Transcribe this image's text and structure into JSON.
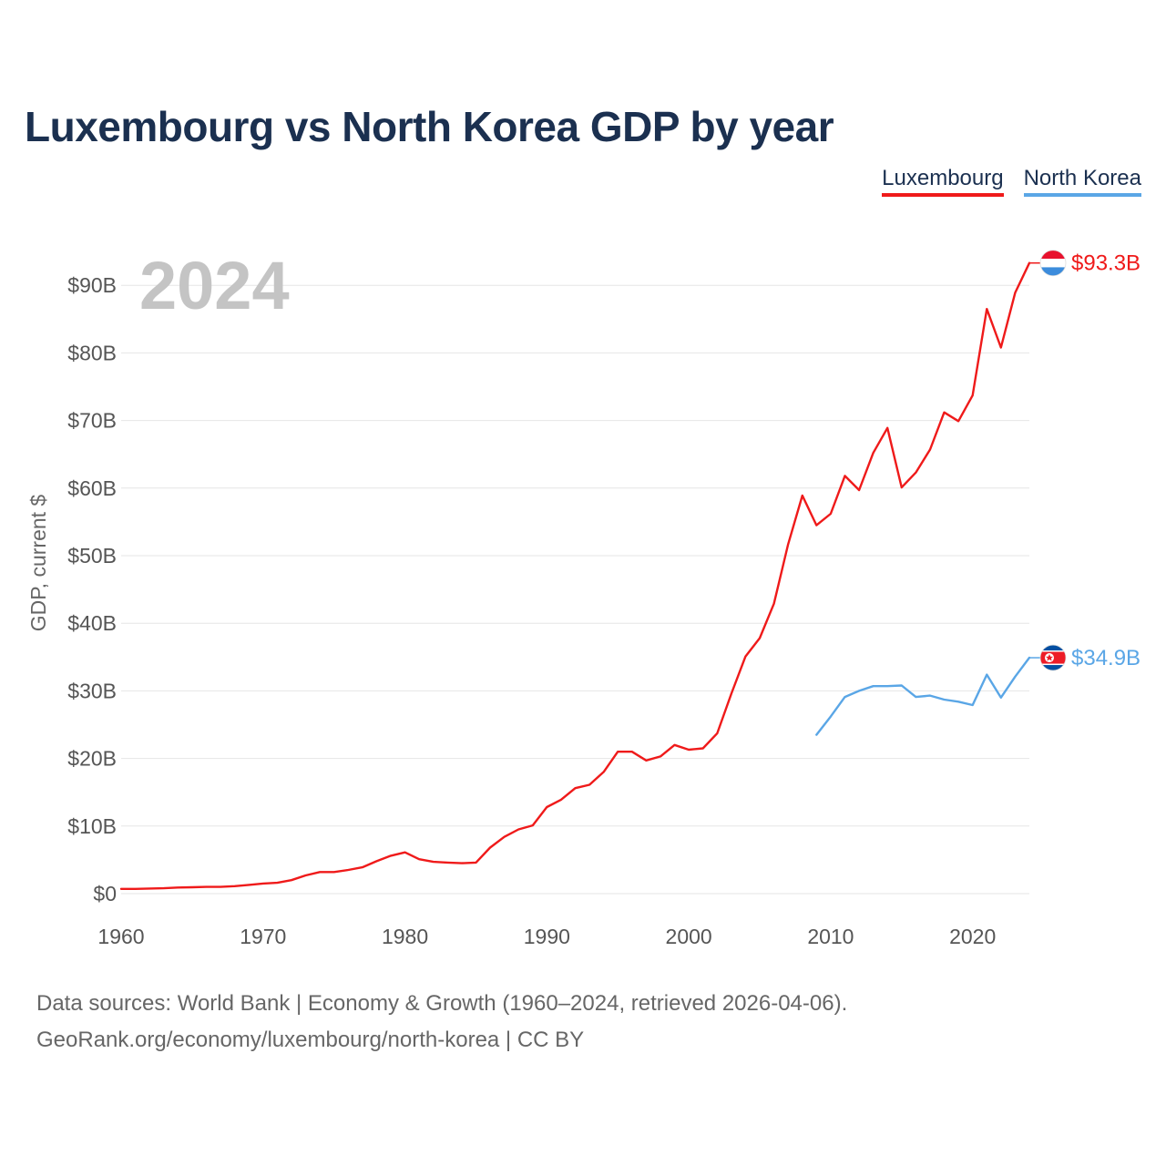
{
  "title": "Luxembourg vs North Korea GDP by year",
  "legend": {
    "luxembourg": "Luxembourg",
    "north_korea": "North Korea"
  },
  "colors": {
    "luxembourg": "#ef1a1a",
    "north_korea": "#5aa6e6",
    "title": "#1b3050",
    "grid": "#e6e6e6"
  },
  "source": {
    "line1": "Data sources: World Bank | Economy & Growth (1960–2024, retrieved 2026-04-06).",
    "line2": "GeoRank.org/economy/luxembourg/north-korea | CC BY"
  },
  "chart_data": {
    "type": "line",
    "title": "Luxembourg vs North Korea GDP by year",
    "xlabel": "",
    "ylabel": "GDP, current $",
    "year_watermark": "2024",
    "xlim": [
      1960,
      2024
    ],
    "ylim": [
      0,
      95
    ],
    "x_ticks": [
      1960,
      1970,
      1980,
      1990,
      2000,
      2010,
      2020
    ],
    "y_ticks": [
      0,
      10,
      20,
      30,
      40,
      50,
      60,
      70,
      80,
      90
    ],
    "y_tick_labels": [
      "$0",
      "$10B",
      "$20B",
      "$30B",
      "$40B",
      "$50B",
      "$60B",
      "$70B",
      "$80B",
      "$90B"
    ],
    "grid": true,
    "series": [
      {
        "name": "Luxembourg",
        "color": "#ef1a1a",
        "flag": "luxembourg-flag-icon",
        "end_label": "$93.3B",
        "points": [
          [
            1960,
            0.7
          ],
          [
            1961,
            0.7
          ],
          [
            1962,
            0.75
          ],
          [
            1963,
            0.8
          ],
          [
            1964,
            0.9
          ],
          [
            1965,
            0.95
          ],
          [
            1966,
            1.0
          ],
          [
            1967,
            1.0
          ],
          [
            1968,
            1.1
          ],
          [
            1969,
            1.3
          ],
          [
            1970,
            1.5
          ],
          [
            1971,
            1.6
          ],
          [
            1972,
            2.0
          ],
          [
            1973,
            2.7
          ],
          [
            1974,
            3.2
          ],
          [
            1975,
            3.2
          ],
          [
            1976,
            3.5
          ],
          [
            1977,
            3.9
          ],
          [
            1978,
            4.8
          ],
          [
            1979,
            5.6
          ],
          [
            1980,
            6.1
          ],
          [
            1981,
            5.1
          ],
          [
            1982,
            4.7
          ],
          [
            1983,
            4.6
          ],
          [
            1984,
            4.5
          ],
          [
            1985,
            4.6
          ],
          [
            1986,
            6.8
          ],
          [
            1987,
            8.4
          ],
          [
            1988,
            9.5
          ],
          [
            1989,
            10.1
          ],
          [
            1990,
            12.8
          ],
          [
            1991,
            13.9
          ],
          [
            1992,
            15.6
          ],
          [
            1993,
            16.1
          ],
          [
            1994,
            18.0
          ],
          [
            1995,
            21.0
          ],
          [
            1996,
            21.0
          ],
          [
            1997,
            19.7
          ],
          [
            1998,
            20.3
          ],
          [
            1999,
            22.0
          ],
          [
            2000,
            21.3
          ],
          [
            2001,
            21.5
          ],
          [
            2002,
            23.7
          ],
          [
            2003,
            29.6
          ],
          [
            2004,
            35.1
          ],
          [
            2005,
            37.8
          ],
          [
            2006,
            42.9
          ],
          [
            2007,
            51.7
          ],
          [
            2008,
            58.9
          ],
          [
            2009,
            54.5
          ],
          [
            2010,
            56.2
          ],
          [
            2011,
            61.8
          ],
          [
            2012,
            59.7
          ],
          [
            2013,
            65.2
          ],
          [
            2014,
            68.9
          ],
          [
            2015,
            60.1
          ],
          [
            2016,
            62.3
          ],
          [
            2017,
            65.7
          ],
          [
            2018,
            71.2
          ],
          [
            2019,
            69.9
          ],
          [
            2020,
            73.7
          ],
          [
            2021,
            86.5
          ],
          [
            2022,
            80.8
          ],
          [
            2023,
            88.9
          ],
          [
            2024,
            93.3
          ]
        ]
      },
      {
        "name": "North Korea",
        "color": "#5aa6e6",
        "flag": "north-korea-flag-icon",
        "end_label": "$34.9B",
        "points": [
          [
            2009,
            23.5
          ],
          [
            2010,
            26.2
          ],
          [
            2011,
            29.1
          ],
          [
            2012,
            30.0
          ],
          [
            2013,
            30.7
          ],
          [
            2014,
            30.7
          ],
          [
            2015,
            30.8
          ],
          [
            2016,
            29.1
          ],
          [
            2017,
            29.3
          ],
          [
            2018,
            28.7
          ],
          [
            2019,
            28.4
          ],
          [
            2020,
            27.9
          ],
          [
            2021,
            32.4
          ],
          [
            2022,
            29.0
          ],
          [
            2023,
            32.1
          ],
          [
            2024,
            34.9
          ]
        ]
      }
    ]
  }
}
